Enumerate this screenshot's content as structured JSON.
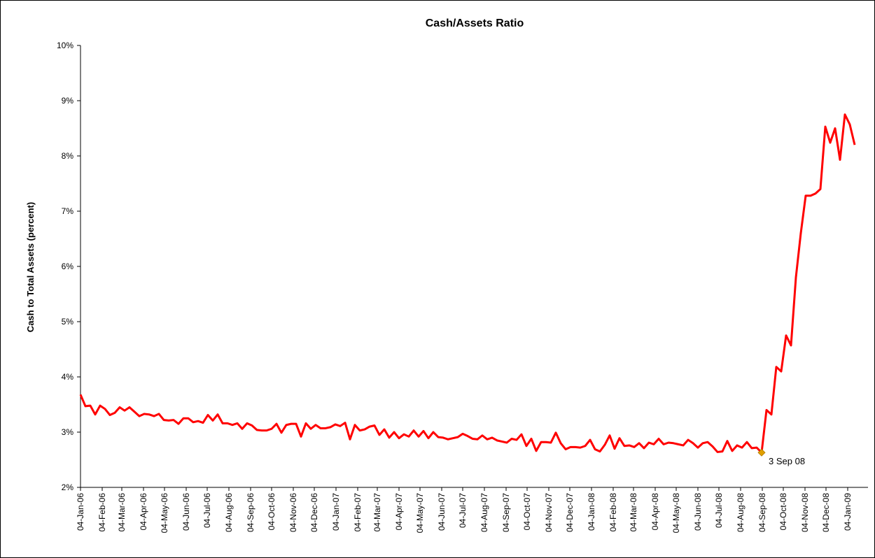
{
  "chart_data": {
    "type": "line",
    "title": "Cash/Assets Ratio",
    "ylabel": "Cash to Total Assets (percent)",
    "color": "#ff0000",
    "annotation": {
      "text": "3 Sep 08",
      "x": "2008-09-03",
      "color": "#e0a000"
    },
    "xlim": [
      "2006-01-04",
      "2009-02-02"
    ],
    "ylim": [
      2,
      10
    ],
    "yticks": [
      {
        "value": 2,
        "label": "2%"
      },
      {
        "value": 3,
        "label": "3%"
      },
      {
        "value": 4,
        "label": "4%"
      },
      {
        "value": 5,
        "label": "5%"
      },
      {
        "value": 6,
        "label": "6%"
      },
      {
        "value": 7,
        "label": "7%"
      },
      {
        "value": 8,
        "label": "8%"
      },
      {
        "value": 9,
        "label": "9%"
      },
      {
        "value": 10,
        "label": "10%"
      }
    ],
    "xticks": [
      {
        "value": "2006-01-04",
        "label": "04-Jan-06"
      },
      {
        "value": "2006-02-04",
        "label": "04-Feb-06"
      },
      {
        "value": "2006-03-04",
        "label": "04-Mar-06"
      },
      {
        "value": "2006-04-04",
        "label": "04-Apr-06"
      },
      {
        "value": "2006-05-04",
        "label": "04-May-06"
      },
      {
        "value": "2006-06-04",
        "label": "04-Jun-06"
      },
      {
        "value": "2006-07-04",
        "label": "04-Jul-06"
      },
      {
        "value": "2006-08-04",
        "label": "04-Aug-06"
      },
      {
        "value": "2006-09-04",
        "label": "04-Sep-06"
      },
      {
        "value": "2006-10-04",
        "label": "04-Oct-06"
      },
      {
        "value": "2006-11-04",
        "label": "04-Nov-06"
      },
      {
        "value": "2006-12-04",
        "label": "04-Dec-06"
      },
      {
        "value": "2007-01-04",
        "label": "04-Jan-07"
      },
      {
        "value": "2007-02-04",
        "label": "04-Feb-07"
      },
      {
        "value": "2007-03-04",
        "label": "04-Mar-07"
      },
      {
        "value": "2007-04-04",
        "label": "04-Apr-07"
      },
      {
        "value": "2007-05-04",
        "label": "04-May-07"
      },
      {
        "value": "2007-06-04",
        "label": "04-Jun-07"
      },
      {
        "value": "2007-07-04",
        "label": "04-Jul-07"
      },
      {
        "value": "2007-08-04",
        "label": "04-Aug-07"
      },
      {
        "value": "2007-09-04",
        "label": "04-Sep-07"
      },
      {
        "value": "2007-10-04",
        "label": "04-Oct-07"
      },
      {
        "value": "2007-11-04",
        "label": "04-Nov-07"
      },
      {
        "value": "2007-12-04",
        "label": "04-Dec-07"
      },
      {
        "value": "2008-01-04",
        "label": "04-Jan-08"
      },
      {
        "value": "2008-02-04",
        "label": "04-Feb-08"
      },
      {
        "value": "2008-03-04",
        "label": "04-Mar-08"
      },
      {
        "value": "2008-04-04",
        "label": "04-Apr-08"
      },
      {
        "value": "2008-05-04",
        "label": "04-May-08"
      },
      {
        "value": "2008-06-04",
        "label": "04-Jun-08"
      },
      {
        "value": "2008-07-04",
        "label": "04-Jul-08"
      },
      {
        "value": "2008-08-04",
        "label": "04-Aug-08"
      },
      {
        "value": "2008-09-04",
        "label": "04-Sep-08"
      },
      {
        "value": "2008-10-04",
        "label": "04-Oct-08"
      },
      {
        "value": "2008-11-04",
        "label": "04-Nov-08"
      },
      {
        "value": "2008-12-04",
        "label": "04-Dec-08"
      },
      {
        "value": "2009-01-04",
        "label": "04-Jan-09"
      }
    ],
    "x": [
      "2006-01-04",
      "2006-01-11",
      "2006-01-18",
      "2006-01-25",
      "2006-02-01",
      "2006-02-08",
      "2006-02-15",
      "2006-02-22",
      "2006-03-01",
      "2006-03-08",
      "2006-03-15",
      "2006-03-22",
      "2006-03-29",
      "2006-04-05",
      "2006-04-12",
      "2006-04-19",
      "2006-04-26",
      "2006-05-03",
      "2006-05-10",
      "2006-05-17",
      "2006-05-24",
      "2006-05-31",
      "2006-06-07",
      "2006-06-14",
      "2006-06-21",
      "2006-06-28",
      "2006-07-05",
      "2006-07-12",
      "2006-07-19",
      "2006-07-26",
      "2006-08-02",
      "2006-08-09",
      "2006-08-16",
      "2006-08-23",
      "2006-08-30",
      "2006-09-06",
      "2006-09-13",
      "2006-09-20",
      "2006-09-27",
      "2006-10-04",
      "2006-10-11",
      "2006-10-18",
      "2006-10-25",
      "2006-11-01",
      "2006-11-08",
      "2006-11-15",
      "2006-11-22",
      "2006-11-29",
      "2006-12-06",
      "2006-12-13",
      "2006-12-20",
      "2006-12-27",
      "2007-01-03",
      "2007-01-10",
      "2007-01-17",
      "2007-01-24",
      "2007-01-31",
      "2007-02-07",
      "2007-02-14",
      "2007-02-21",
      "2007-02-28",
      "2007-03-07",
      "2007-03-14",
      "2007-03-21",
      "2007-03-28",
      "2007-04-04",
      "2007-04-11",
      "2007-04-18",
      "2007-04-25",
      "2007-05-02",
      "2007-05-09",
      "2007-05-16",
      "2007-05-23",
      "2007-05-30",
      "2007-06-06",
      "2007-06-13",
      "2007-06-20",
      "2007-06-27",
      "2007-07-04",
      "2007-07-11",
      "2007-07-18",
      "2007-07-25",
      "2007-08-01",
      "2007-08-08",
      "2007-08-15",
      "2007-08-22",
      "2007-08-29",
      "2007-09-05",
      "2007-09-12",
      "2007-09-19",
      "2007-09-26",
      "2007-10-03",
      "2007-10-10",
      "2007-10-17",
      "2007-10-24",
      "2007-10-31",
      "2007-11-07",
      "2007-11-14",
      "2007-11-21",
      "2007-11-28",
      "2007-12-05",
      "2007-12-12",
      "2007-12-19",
      "2007-12-26",
      "2008-01-02",
      "2008-01-09",
      "2008-01-16",
      "2008-01-23",
      "2008-01-30",
      "2008-02-06",
      "2008-02-13",
      "2008-02-20",
      "2008-02-27",
      "2008-03-05",
      "2008-03-12",
      "2008-03-19",
      "2008-03-26",
      "2008-04-02",
      "2008-04-09",
      "2008-04-16",
      "2008-04-23",
      "2008-04-30",
      "2008-05-07",
      "2008-05-14",
      "2008-05-21",
      "2008-05-28",
      "2008-06-04",
      "2008-06-11",
      "2008-06-18",
      "2008-06-25",
      "2008-07-02",
      "2008-07-09",
      "2008-07-16",
      "2008-07-23",
      "2008-07-30",
      "2008-08-06",
      "2008-08-13",
      "2008-08-20",
      "2008-08-27",
      "2008-09-03",
      "2008-09-10",
      "2008-09-17",
      "2008-09-24",
      "2008-10-01",
      "2008-10-08",
      "2008-10-15",
      "2008-10-22",
      "2008-10-29",
      "2008-11-05",
      "2008-11-12",
      "2008-11-19",
      "2008-11-26",
      "2008-12-03",
      "2008-12-10",
      "2008-12-17",
      "2008-12-24",
      "2008-12-31",
      "2009-01-07",
      "2009-01-14"
    ],
    "values": [
      3.68,
      3.47,
      3.48,
      3.32,
      3.48,
      3.42,
      3.31,
      3.35,
      3.45,
      3.39,
      3.45,
      3.37,
      3.29,
      3.33,
      3.32,
      3.29,
      3.33,
      3.22,
      3.21,
      3.22,
      3.15,
      3.25,
      3.25,
      3.18,
      3.2,
      3.17,
      3.31,
      3.21,
      3.32,
      3.16,
      3.16,
      3.13,
      3.16,
      3.06,
      3.16,
      3.12,
      3.04,
      3.03,
      3.03,
      3.06,
      3.15,
      2.99,
      3.13,
      3.15,
      3.15,
      2.92,
      3.16,
      3.06,
      3.13,
      3.07,
      3.07,
      3.09,
      3.14,
      3.11,
      3.17,
      2.87,
      3.13,
      3.03,
      3.05,
      3.1,
      3.12,
      2.95,
      3.05,
      2.9,
      3.0,
      2.89,
      2.96,
      2.92,
      3.03,
      2.92,
      3.02,
      2.89,
      3.0,
      2.91,
      2.9,
      2.87,
      2.89,
      2.91,
      2.97,
      2.93,
      2.88,
      2.87,
      2.94,
      2.87,
      2.9,
      2.85,
      2.83,
      2.81,
      2.88,
      2.86,
      2.96,
      2.75,
      2.88,
      2.66,
      2.82,
      2.82,
      2.81,
      2.99,
      2.8,
      2.69,
      2.73,
      2.73,
      2.72,
      2.75,
      2.86,
      2.69,
      2.65,
      2.77,
      2.94,
      2.7,
      2.89,
      2.75,
      2.76,
      2.73,
      2.8,
      2.71,
      2.81,
      2.78,
      2.88,
      2.78,
      2.81,
      2.8,
      2.78,
      2.76,
      2.86,
      2.8,
      2.72,
      2.8,
      2.82,
      2.74,
      2.64,
      2.65,
      2.84,
      2.66,
      2.76,
      2.72,
      2.82,
      2.71,
      2.72,
      2.63,
      3.4,
      3.32,
      4.18,
      4.1,
      4.75,
      4.57,
      5.8,
      6.6,
      7.28,
      7.28,
      7.32,
      7.4,
      8.53,
      8.24,
      8.5,
      7.93,
      8.75,
      8.57,
      8.2
    ]
  }
}
